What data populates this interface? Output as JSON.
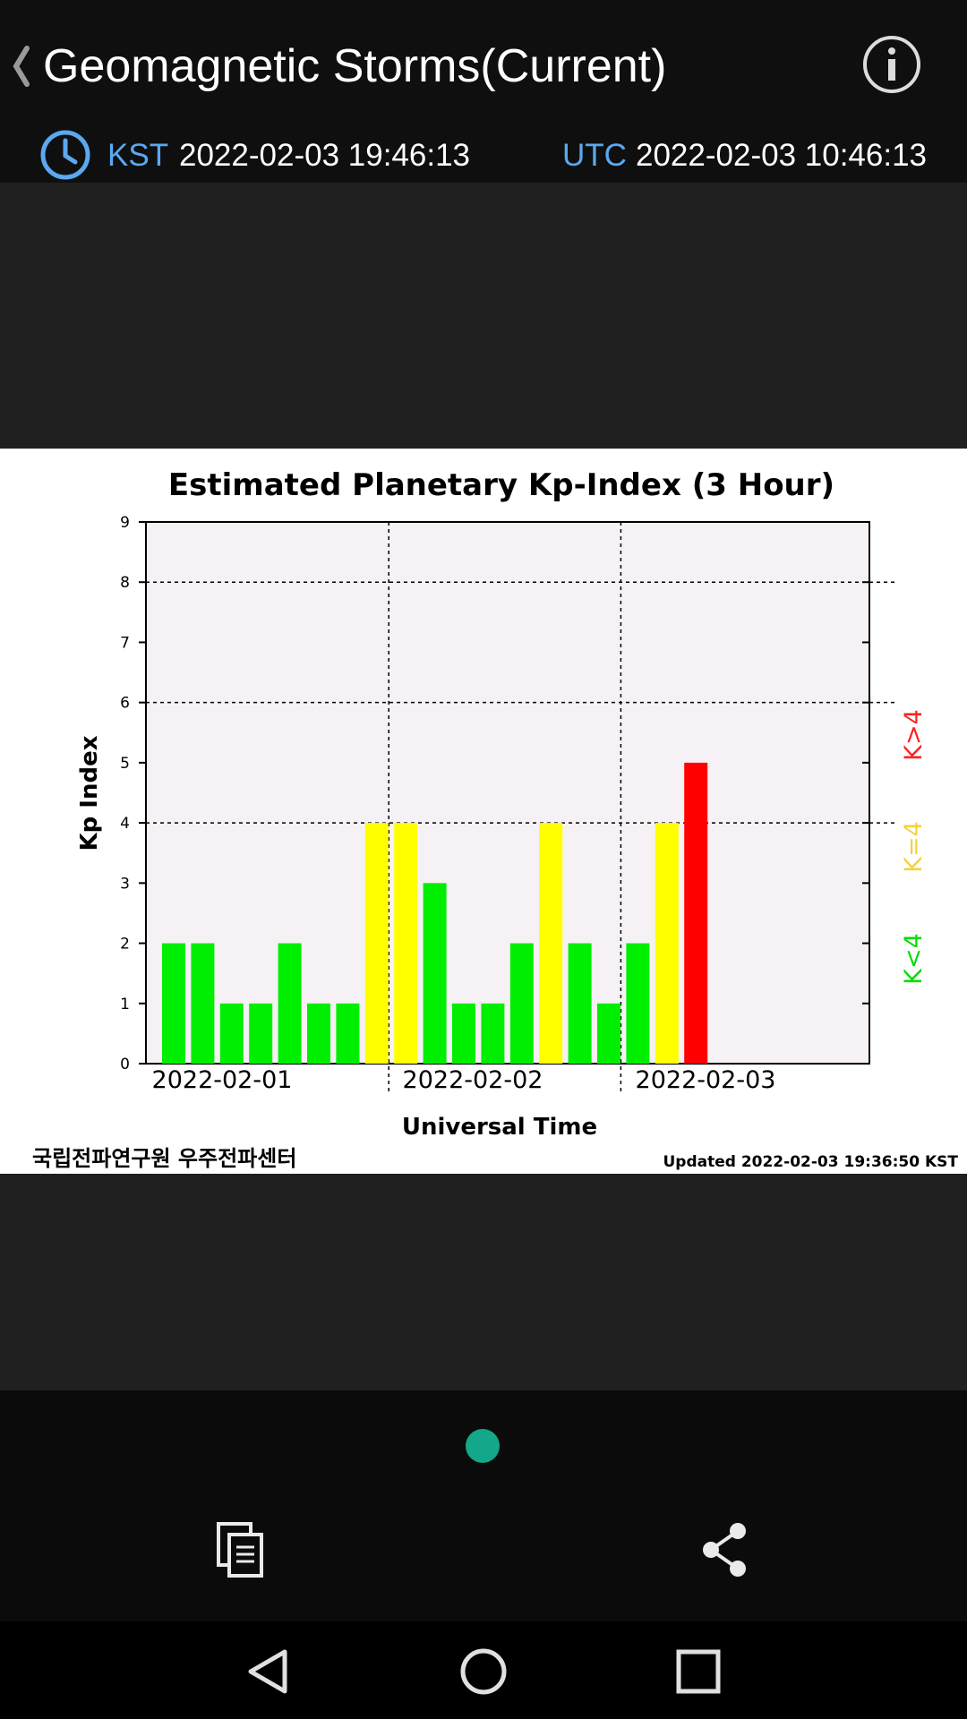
{
  "header": {
    "title": "Geomagnetic Storms(Current)",
    "back_icon": "chevron-left-icon",
    "info_icon": "info-circle-icon"
  },
  "time": {
    "clock_icon": "clock-icon",
    "kst_label": "KST",
    "kst_value": "2022-02-03 19:46:13",
    "utc_label": "UTC",
    "utc_value": "2022-02-03 10:46:13",
    "label_color": "#5aa9f0"
  },
  "chart_data": {
    "type": "bar",
    "title": "Estimated Planetary Kp-Index (3 Hour)",
    "xlabel": "Universal Time",
    "ylabel": "Kp Index",
    "ylim": [
      0,
      9
    ],
    "yticks": [
      0,
      1,
      2,
      3,
      4,
      5,
      6,
      7,
      8,
      9
    ],
    "x_tick_labels": [
      "2022-02-01",
      "2022-02-02",
      "2022-02-03"
    ],
    "values": [
      2,
      2,
      1,
      1,
      2,
      1,
      1,
      4,
      4,
      3,
      1,
      1,
      2,
      4,
      2,
      1,
      2,
      4,
      5
    ],
    "colors": {
      "low": "#00ee00",
      "mid": "#ffff00",
      "high": "#ff0000",
      "plot_bg": "#f6f1f5"
    },
    "legend": [
      {
        "label": "K>4",
        "color": "#ff2020"
      },
      {
        "label": "K=4",
        "color": "#f5d23a"
      },
      {
        "label": "K<4",
        "color": "#00dd00"
      }
    ],
    "grid_y": [
      4,
      6,
      8
    ],
    "credit": "국립전파연구원 우주전파센터",
    "updated": "Updated 2022-02-03 19:36:50 KST"
  },
  "bottom": {
    "copy_icon": "copy-icon",
    "share_icon": "share-icon",
    "page_indicator_color": "#12a889"
  },
  "navbar": {
    "back_icon": "nav-back-icon",
    "home_icon": "nav-home-icon",
    "recent_icon": "nav-recent-icon"
  }
}
